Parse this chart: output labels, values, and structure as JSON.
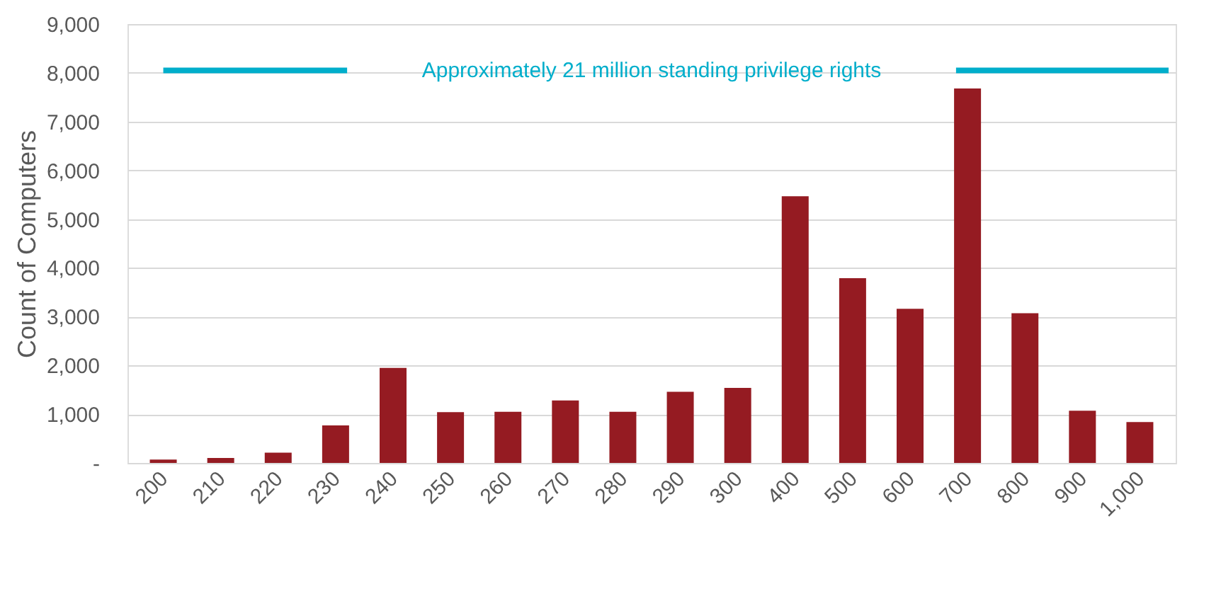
{
  "chart_data": {
    "type": "bar",
    "ylabel": "Count of Computers",
    "categories": [
      "200",
      "210",
      "220",
      "230",
      "240",
      "250",
      "260",
      "270",
      "280",
      "290",
      "300",
      "400",
      "500",
      "600",
      "700",
      "800",
      "900",
      "1,000"
    ],
    "values": [
      70,
      100,
      210,
      770,
      1950,
      1040,
      1050,
      1280,
      1050,
      1460,
      1540,
      5470,
      3790,
      3160,
      7680,
      3070,
      1070,
      840
    ],
    "color": "#951b22",
    "ylim": [
      0,
      9000
    ],
    "yticks": [
      {
        "value": 0,
        "label": "-"
      },
      {
        "value": 1000,
        "label": "1,000"
      },
      {
        "value": 2000,
        "label": "2,000"
      },
      {
        "value": 3000,
        "label": "3,000"
      },
      {
        "value": 4000,
        "label": "4,000"
      },
      {
        "value": 5000,
        "label": "5,000"
      },
      {
        "value": 6000,
        "label": "6,000"
      },
      {
        "value": 7000,
        "label": "7,000"
      },
      {
        "value": 8000,
        "label": "8,000"
      },
      {
        "value": 9000,
        "label": "9,000"
      }
    ],
    "grid": "y",
    "ref_lines": [
      {
        "axis": "y",
        "value": 8050,
        "label": "Approximately 21 million standing privilege rights",
        "color": "#00aecb"
      }
    ]
  }
}
